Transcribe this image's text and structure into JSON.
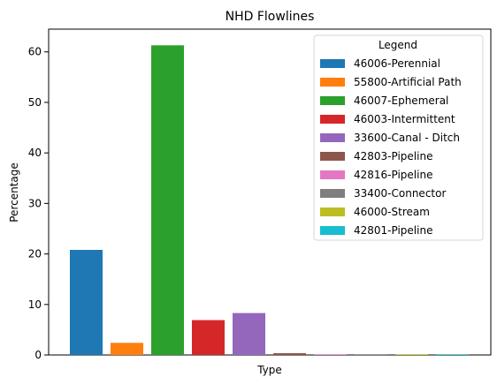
{
  "chart_data": {
    "type": "bar",
    "title": "NHD Flowlines",
    "xlabel": "Type",
    "ylabel": "Percentage",
    "ylim": [
      0,
      64.5
    ],
    "yticks": [
      0,
      10,
      20,
      30,
      40,
      50,
      60
    ],
    "grid": false,
    "legend": {
      "title": "Legend",
      "placement": "top-right"
    },
    "series": [
      {
        "name": "46006-Perennial",
        "value": 20.8,
        "color": "#1f77b4"
      },
      {
        "name": "55800-Artificial Path",
        "value": 2.4,
        "color": "#ff7f0e"
      },
      {
        "name": "46007-Ephemeral",
        "value": 61.3,
        "color": "#2ca02c"
      },
      {
        "name": "46003-Intermittent",
        "value": 6.9,
        "color": "#d62728"
      },
      {
        "name": "33600-Canal - Ditch",
        "value": 8.3,
        "color": "#9467bd"
      },
      {
        "name": "42803-Pipeline",
        "value": 0.35,
        "color": "#8c564b"
      },
      {
        "name": "42816-Pipeline",
        "value": 0.12,
        "color": "#e377c2"
      },
      {
        "name": "33400-Connector",
        "value": 0.04,
        "color": "#7f7f7f"
      },
      {
        "name": "46000-Stream",
        "value": 0.12,
        "color": "#bcbd22"
      },
      {
        "name": "42801-Pipeline",
        "value": 0.12,
        "color": "#17becf"
      }
    ]
  }
}
